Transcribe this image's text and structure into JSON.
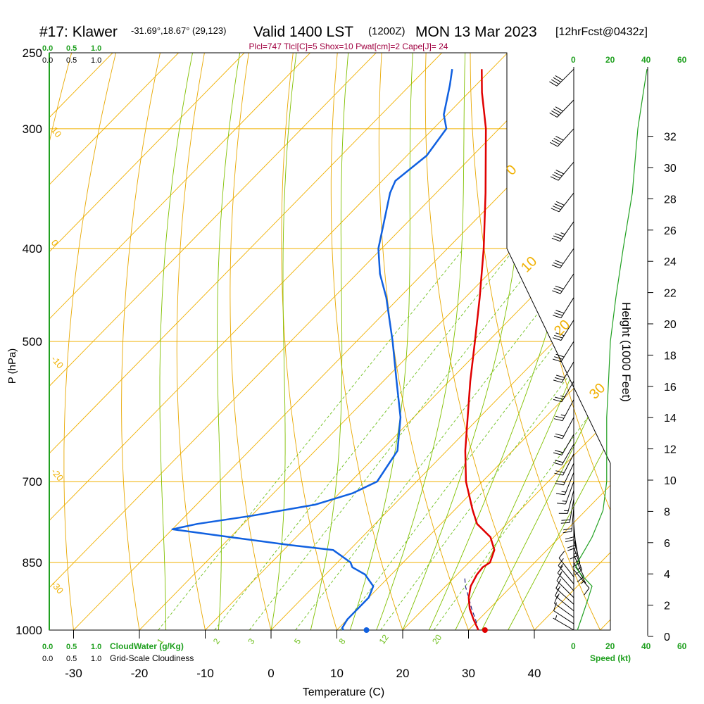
{
  "header": {
    "station": "#17: Klawer",
    "coords": "-31.69°,18.67° (29,123)",
    "valid": "Valid 1400 LST",
    "utc": "(1200Z)",
    "date": "MON 13 Mar 2023",
    "forecast": "[12hrFcst@0432z]",
    "indices": "Plcl=747 Tlcl[C]=5 Shox=10 Pwat[cm]=2 Cape[J]= 24"
  },
  "labels": {
    "cloudwater": "CloudWater (g/Kg)",
    "cloudiness": "Grid-Scale Cloudiness",
    "speed": "Speed (kt)",
    "cw_ticks": [
      "0.0",
      "0.5",
      "1.0"
    ],
    "speed_ticks": [
      "0",
      "20",
      "40",
      "60"
    ]
  },
  "colors": {
    "isotherm": "#f0b000",
    "dry_adiabat": "#e8a800",
    "moist_adiabat": "#80c000",
    "mixing_ratio": "#70c020",
    "temperature": "#e00000",
    "dewpoint": "#1060e0",
    "cloudwater": "#20a020",
    "indices": "#a00040",
    "speed_line": "#20a020"
  },
  "chart_data": {
    "type": "line",
    "title": "#17: Klawer  Valid 1400 LST (1200Z) MON 13 Mar 2023",
    "xlabel": "Temperature (C)",
    "ylabel": "P (hPa)",
    "y2label": "Height (1000 Feet)",
    "x_ticks": [
      -30,
      -20,
      -10,
      0,
      10,
      20,
      30,
      40
    ],
    "pressure_ticks": [
      250,
      300,
      400,
      500,
      700,
      850,
      1000
    ],
    "height_ticks": [
      0,
      2,
      4,
      6,
      8,
      10,
      12,
      14,
      16,
      18,
      20,
      22,
      24,
      26,
      28,
      30,
      32
    ],
    "isotherm_labels": [
      10,
      0,
      -10,
      -20,
      -30
    ],
    "isotherm_labels_right": [
      0,
      10,
      20,
      30
    ],
    "mixing_ratio_labels": [
      "1",
      "2",
      "3",
      "5",
      "8",
      "12",
      "20"
    ],
    "series": [
      {
        "name": "Temperature",
        "pressure": [
          1000,
          975,
          950,
          925,
          900,
          875,
          860,
          850,
          825,
          800,
          775,
          750,
          700,
          650,
          600,
          550,
          500,
          450,
          400,
          350,
          300,
          275,
          260
        ],
        "temperature": [
          31.5,
          29.2,
          27.0,
          25.2,
          23.8,
          23.0,
          22.8,
          23.2,
          22.0,
          19.5,
          15.5,
          12.8,
          7.5,
          2.8,
          -1.8,
          -6.8,
          -12.0,
          -17.8,
          -24.5,
          -32.5,
          -42.0,
          -48.0,
          -51.5
        ]
      },
      {
        "name": "Dewpoint",
        "pressure": [
          1000,
          995,
          975,
          950,
          925,
          900,
          875,
          860,
          850,
          825,
          815,
          800,
          785,
          775,
          760,
          740,
          720,
          700,
          650,
          600,
          550,
          500,
          450,
          425,
          400,
          350,
          340,
          320,
          300,
          290,
          270,
          260
        ],
        "temperature": [
          11.0,
          10.5,
          10.0,
          10.0,
          10.0,
          9.0,
          6.0,
          3.0,
          2.0,
          -2.5,
          -10.0,
          -20.0,
          -30.0,
          -27.0,
          -20.0,
          -12.0,
          -8.0,
          -6.0,
          -7.5,
          -12.0,
          -18.0,
          -24.5,
          -32.0,
          -36.5,
          -40.5,
          -47.0,
          -48.0,
          -47.0,
          -48.0,
          -50.5,
          -54.0,
          -56.0
        ]
      },
      {
        "name": "Parcel",
        "pressure": [
          1000,
          975,
          950,
          925,
          900,
          880
        ],
        "temperature": [
          31.5,
          29.5,
          27.3,
          25.2,
          23.0,
          21.5
        ]
      }
    ],
    "surface": {
      "temperature": 32.5,
      "dewpoint": 14.5
    },
    "winds": [
      {
        "p": 1000,
        "spd": 5,
        "dir": 300
      },
      {
        "p": 985,
        "spd": 9,
        "dir": 303
      },
      {
        "p": 970,
        "spd": 11,
        "dir": 306
      },
      {
        "p": 955,
        "spd": 13,
        "dir": 309
      },
      {
        "p": 940,
        "spd": 15,
        "dir": 312
      },
      {
        "p": 925,
        "spd": 15,
        "dir": 315
      },
      {
        "p": 910,
        "spd": 15,
        "dir": 318
      },
      {
        "p": 895,
        "spd": 14,
        "dir": 320
      },
      {
        "p": 880,
        "spd": 12,
        "dir": 322
      },
      {
        "p": 865,
        "spd": 8,
        "dir": 140
      },
      {
        "p": 850,
        "spd": 6,
        "dir": 150
      },
      {
        "p": 835,
        "spd": 10,
        "dir": 155
      },
      {
        "p": 820,
        "spd": 14,
        "dir": 160
      },
      {
        "p": 805,
        "spd": 16,
        "dir": 165
      },
      {
        "p": 790,
        "spd": 17,
        "dir": 170
      },
      {
        "p": 775,
        "spd": 18,
        "dir": 175
      },
      {
        "p": 760,
        "spd": 18,
        "dir": 180
      },
      {
        "p": 745,
        "spd": 18,
        "dir": 185
      },
      {
        "p": 730,
        "spd": 18,
        "dir": 190
      },
      {
        "p": 715,
        "spd": 17,
        "dir": 195
      },
      {
        "p": 700,
        "spd": 17,
        "dir": 200
      },
      {
        "p": 685,
        "spd": 17,
        "dir": 202
      },
      {
        "p": 670,
        "spd": 18,
        "dir": 205
      },
      {
        "p": 655,
        "spd": 18,
        "dir": 207
      },
      {
        "p": 640,
        "spd": 19,
        "dir": 210
      },
      {
        "p": 625,
        "spd": 20,
        "dir": 210
      },
      {
        "p": 600,
        "spd": 22,
        "dir": 208
      },
      {
        "p": 575,
        "spd": 24,
        "dir": 208
      },
      {
        "p": 550,
        "spd": 26,
        "dir": 210
      },
      {
        "p": 525,
        "spd": 28,
        "dir": 210
      },
      {
        "p": 500,
        "spd": 30,
        "dir": 212
      },
      {
        "p": 475,
        "spd": 30,
        "dir": 212
      },
      {
        "p": 450,
        "spd": 30,
        "dir": 212
      },
      {
        "p": 425,
        "spd": 30,
        "dir": 214
      },
      {
        "p": 400,
        "spd": 32,
        "dir": 215
      },
      {
        "p": 375,
        "spd": 35,
        "dir": 215
      },
      {
        "p": 350,
        "spd": 38,
        "dir": 218
      },
      {
        "p": 325,
        "spd": 40,
        "dir": 220
      },
      {
        "p": 300,
        "spd": 42,
        "dir": 222
      },
      {
        "p": 280,
        "spd": 42,
        "dir": 224
      },
      {
        "p": 260,
        "spd": 40,
        "dir": 225
      }
    ],
    "wind_speed_profile": {
      "pressure": [
        1000,
        975,
        950,
        925,
        900,
        875,
        860,
        850,
        825,
        800,
        775,
        750,
        700,
        650,
        600,
        550,
        500,
        450,
        400,
        350,
        300,
        275,
        260
      ],
      "speed": [
        2,
        4,
        6,
        8,
        10,
        4,
        1,
        2,
        6,
        10,
        13,
        16,
        18,
        18,
        18,
        19,
        20,
        23,
        27,
        32,
        35,
        38,
        40
      ]
    }
  }
}
